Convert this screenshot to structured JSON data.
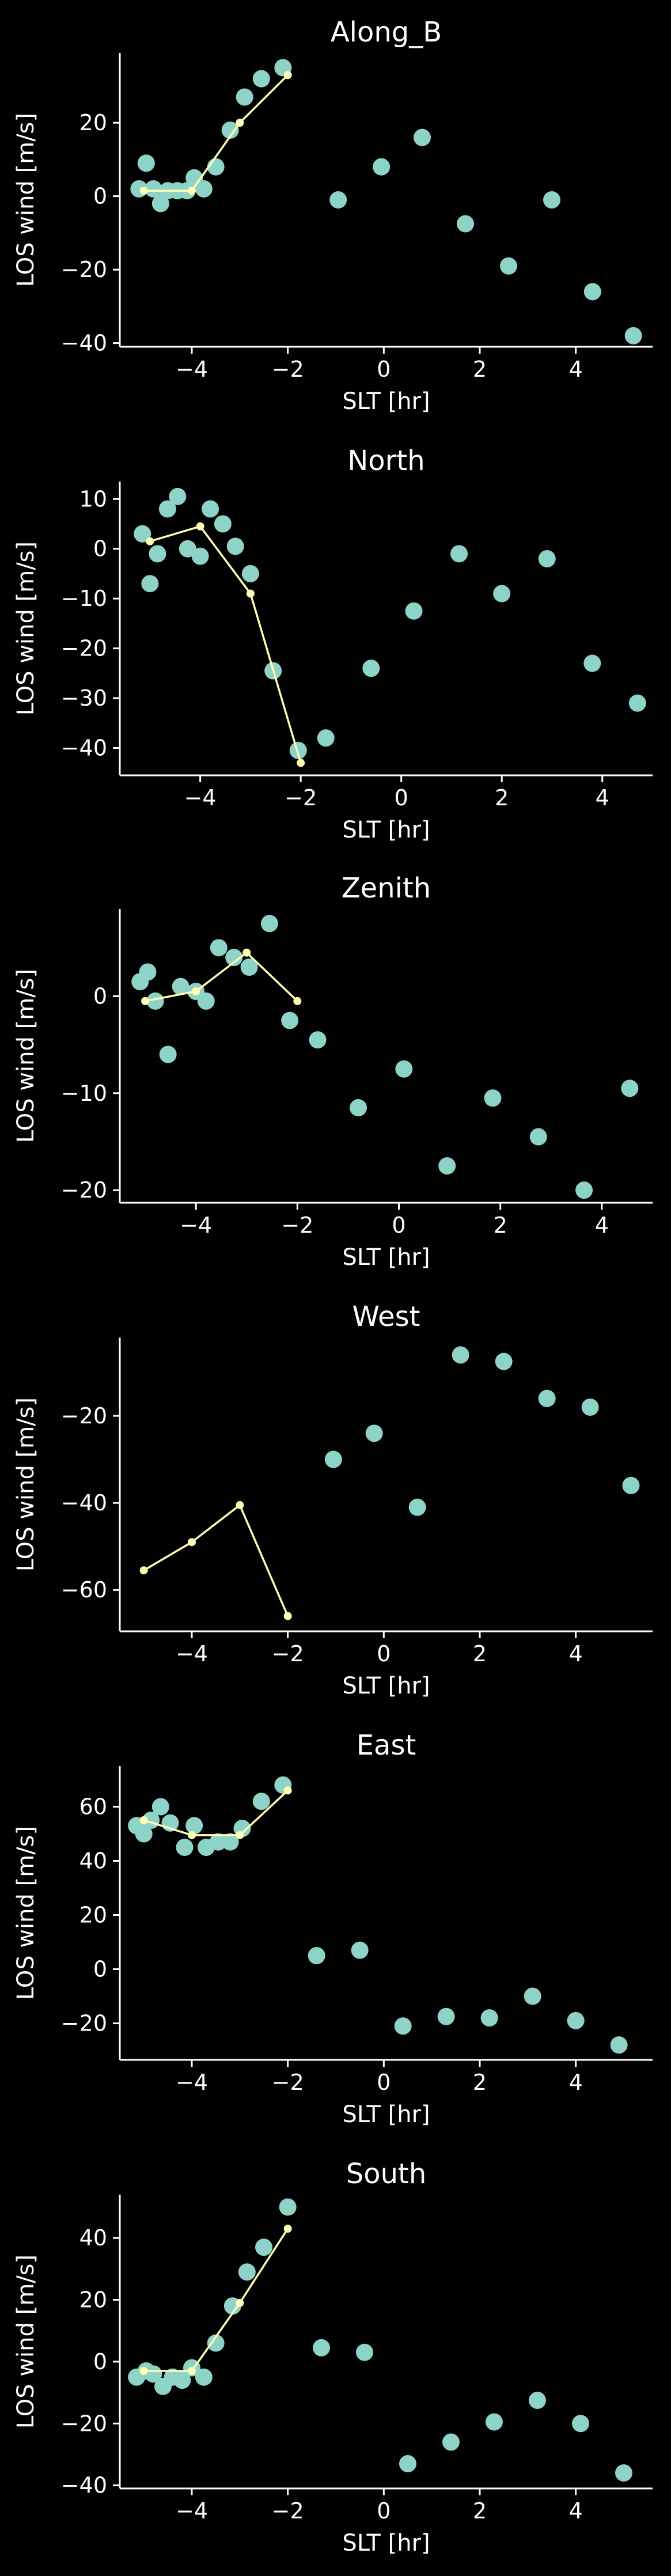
{
  "colors": {
    "background": "#000000",
    "scatter": "#8dd3c7",
    "line": "#ffffb3",
    "axes": "#ffffff"
  },
  "chart_data": [
    {
      "type": "scatter",
      "title": "Along_B",
      "xlabel": "SLT [hr]",
      "ylabel": "LOS wind [m/s]",
      "xlim": [
        -5.5,
        5.6
      ],
      "ylim": [
        -41,
        39
      ],
      "xticks": [
        -4,
        -2,
        0,
        2,
        4
      ],
      "yticks": [
        -40,
        -20,
        0,
        20
      ],
      "grid": false,
      "series": [
        {
          "kind": "scatter",
          "points": [
            [
              -5.1,
              2
            ],
            [
              -4.95,
              9
            ],
            [
              -4.8,
              2
            ],
            [
              -4.65,
              -2
            ],
            [
              -4.5,
              1.5
            ],
            [
              -4.3,
              1.5
            ],
            [
              -4.1,
              1.5
            ],
            [
              -3.95,
              5
            ],
            [
              -3.75,
              2
            ],
            [
              -3.5,
              8
            ],
            [
              -3.2,
              18
            ],
            [
              -2.9,
              27
            ],
            [
              -2.55,
              32
            ],
            [
              -2.1,
              35
            ],
            [
              -0.95,
              -1
            ],
            [
              -0.05,
              8
            ],
            [
              0.8,
              16
            ],
            [
              1.7,
              -7.5
            ],
            [
              2.6,
              -19
            ],
            [
              3.5,
              -1
            ],
            [
              4.35,
              -26
            ],
            [
              5.2,
              -38
            ]
          ]
        },
        {
          "kind": "line",
          "points": [
            [
              -5,
              1.5
            ],
            [
              -4,
              1.5
            ],
            [
              -3,
              20
            ],
            [
              -2,
              33
            ]
          ]
        }
      ]
    },
    {
      "type": "scatter",
      "title": "North",
      "xlabel": "SLT [hr]",
      "ylabel": "LOS wind [m/s]",
      "xlim": [
        -5.6,
        5.0
      ],
      "ylim": [
        -45.5,
        13.5
      ],
      "xticks": [
        -4,
        -2,
        0,
        2,
        4
      ],
      "yticks": [
        -40,
        -30,
        -20,
        -10,
        0,
        10
      ],
      "grid": false,
      "series": [
        {
          "kind": "scatter",
          "points": [
            [
              -5.15,
              3
            ],
            [
              -5.0,
              -7
            ],
            [
              -4.85,
              -1
            ],
            [
              -4.65,
              8
            ],
            [
              -4.45,
              10.5
            ],
            [
              -4.25,
              0
            ],
            [
              -4.0,
              -1.5
            ],
            [
              -3.8,
              8
            ],
            [
              -3.55,
              5
            ],
            [
              -3.3,
              0.5
            ],
            [
              -3.0,
              -5
            ],
            [
              -2.55,
              -24.5
            ],
            [
              -2.05,
              -40.5
            ],
            [
              -1.5,
              -38
            ],
            [
              -0.6,
              -24
            ],
            [
              0.25,
              -12.5
            ],
            [
              1.15,
              -1
            ],
            [
              2.0,
              -9
            ],
            [
              2.9,
              -2
            ],
            [
              3.8,
              -23
            ],
            [
              4.7,
              -31
            ]
          ]
        },
        {
          "kind": "line",
          "points": [
            [
              -5,
              1.5
            ],
            [
              -4,
              4.5
            ],
            [
              -3,
              -9
            ],
            [
              -2,
              -43
            ]
          ]
        }
      ]
    },
    {
      "type": "scatter",
      "title": "Zenith",
      "xlabel": "SLT [hr]",
      "ylabel": "LOS wind [m/s]",
      "xlim": [
        -5.5,
        5.0
      ],
      "ylim": [
        -21.3,
        9.0
      ],
      "xticks": [
        -4,
        -2,
        0,
        2,
        4
      ],
      "yticks": [
        -20,
        -10,
        0
      ],
      "grid": false,
      "series": [
        {
          "kind": "scatter",
          "points": [
            [
              -5.1,
              1.5
            ],
            [
              -4.95,
              2.5
            ],
            [
              -4.8,
              -0.5
            ],
            [
              -4.55,
              -6
            ],
            [
              -4.3,
              1
            ],
            [
              -4.0,
              0.5
            ],
            [
              -3.8,
              -0.5
            ],
            [
              -3.55,
              5
            ],
            [
              -3.25,
              4
            ],
            [
              -2.95,
              3
            ],
            [
              -2.55,
              7.5
            ],
            [
              -2.15,
              -2.5
            ],
            [
              -1.6,
              -4.5
            ],
            [
              -0.8,
              -11.5
            ],
            [
              0.1,
              -7.5
            ],
            [
              0.95,
              -17.5
            ],
            [
              1.85,
              -10.5
            ],
            [
              2.75,
              -14.5
            ],
            [
              3.65,
              -20
            ],
            [
              4.55,
              -9.5
            ]
          ]
        },
        {
          "kind": "line",
          "points": [
            [
              -5,
              -0.5
            ],
            [
              -4,
              0.5
            ],
            [
              -3,
              4.5
            ],
            [
              -2,
              -0.5
            ]
          ]
        }
      ]
    },
    {
      "type": "scatter",
      "title": "West",
      "xlabel": "SLT [hr]",
      "ylabel": "LOS wind [m/s]",
      "xlim": [
        -5.5,
        5.6
      ],
      "ylim": [
        -69.5,
        -2.0
      ],
      "xticks": [
        -4,
        -2,
        0,
        2,
        4
      ],
      "yticks": [
        -60,
        -40,
        -20
      ],
      "grid": false,
      "series": [
        {
          "kind": "scatter",
          "points": [
            [
              -1.05,
              -30
            ],
            [
              -0.2,
              -24
            ],
            [
              0.7,
              -41
            ],
            [
              1.6,
              -6
            ],
            [
              2.5,
              -7.5
            ],
            [
              3.4,
              -16
            ],
            [
              4.3,
              -18
            ],
            [
              5.15,
              -36
            ]
          ]
        },
        {
          "kind": "line",
          "points": [
            [
              -5,
              -55.5
            ],
            [
              -4,
              -49
            ],
            [
              -3,
              -40.5
            ],
            [
              -2,
              -66
            ]
          ]
        }
      ]
    },
    {
      "type": "scatter",
      "title": "East",
      "xlabel": "SLT [hr]",
      "ylabel": "LOS wind [m/s]",
      "xlim": [
        -5.5,
        5.6
      ],
      "ylim": [
        -33.5,
        75.0
      ],
      "xticks": [
        -4,
        -2,
        0,
        2,
        4
      ],
      "yticks": [
        -20,
        0,
        20,
        40,
        60
      ],
      "grid": false,
      "series": [
        {
          "kind": "scatter",
          "points": [
            [
              -5.15,
              53
            ],
            [
              -5.0,
              50
            ],
            [
              -4.85,
              55
            ],
            [
              -4.65,
              60
            ],
            [
              -4.45,
              54
            ],
            [
              -4.15,
              45
            ],
            [
              -3.95,
              53
            ],
            [
              -3.7,
              45
            ],
            [
              -3.45,
              47
            ],
            [
              -3.2,
              47
            ],
            [
              -2.95,
              52
            ],
            [
              -2.55,
              62
            ],
            [
              -2.1,
              68
            ],
            [
              -1.4,
              5
            ],
            [
              -0.5,
              7
            ],
            [
              0.4,
              -21
            ],
            [
              1.3,
              -17.5
            ],
            [
              2.2,
              -18
            ],
            [
              3.1,
              -10
            ],
            [
              4.0,
              -19
            ],
            [
              4.9,
              -28
            ]
          ]
        },
        {
          "kind": "line",
          "points": [
            [
              -5,
              55
            ],
            [
              -4,
              49.5
            ],
            [
              -3,
              49.5
            ],
            [
              -2,
              66
            ]
          ]
        }
      ]
    },
    {
      "type": "scatter",
      "title": "South",
      "xlabel": "SLT [hr]",
      "ylabel": "LOS wind [m/s]",
      "xlim": [
        -5.5,
        5.6
      ],
      "ylim": [
        -41,
        54
      ],
      "xticks": [
        -4,
        -2,
        0,
        2,
        4
      ],
      "yticks": [
        -40,
        -20,
        0,
        20,
        40
      ],
      "grid": false,
      "series": [
        {
          "kind": "scatter",
          "points": [
            [
              -5.15,
              -5
            ],
            [
              -4.95,
              -3
            ],
            [
              -4.8,
              -4
            ],
            [
              -4.6,
              -8
            ],
            [
              -4.4,
              -5
            ],
            [
              -4.2,
              -6
            ],
            [
              -4.0,
              -2
            ],
            [
              -3.75,
              -5
            ],
            [
              -3.5,
              6
            ],
            [
              -3.15,
              18
            ],
            [
              -2.85,
              29
            ],
            [
              -2.5,
              37
            ],
            [
              -2.0,
              50
            ],
            [
              -1.3,
              4.5
            ],
            [
              -0.4,
              3
            ],
            [
              0.5,
              -33
            ],
            [
              1.4,
              -26
            ],
            [
              2.3,
              -19.5
            ],
            [
              3.2,
              -12.5
            ],
            [
              4.1,
              -20
            ],
            [
              5.0,
              -36
            ]
          ]
        },
        {
          "kind": "line",
          "points": [
            [
              -5,
              -3
            ],
            [
              -4,
              -3
            ],
            [
              -3,
              19
            ],
            [
              -2,
              43
            ]
          ]
        }
      ]
    }
  ]
}
